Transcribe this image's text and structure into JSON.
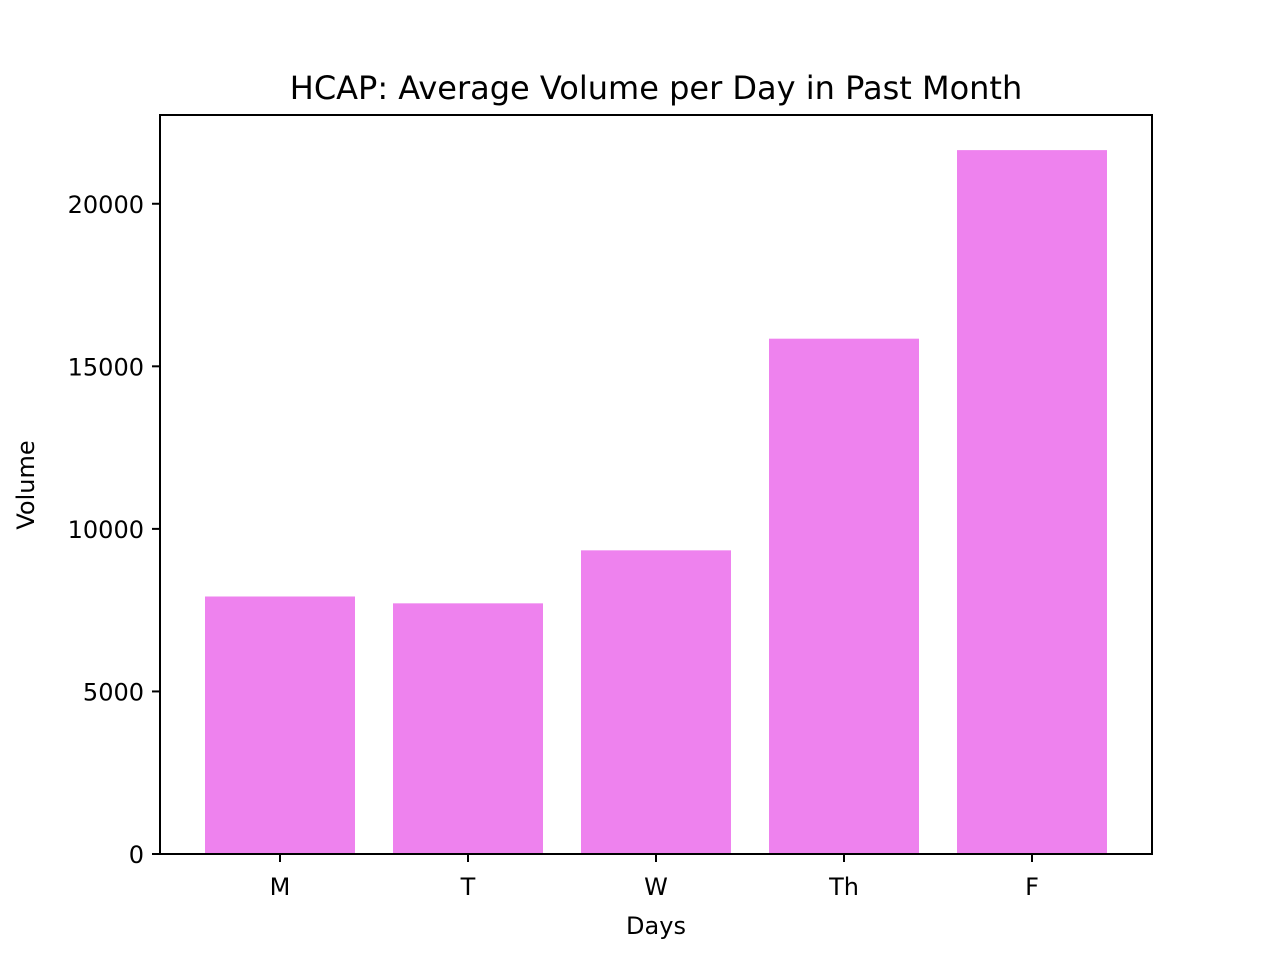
{
  "chart_data": {
    "type": "bar",
    "title": "HCAP: Average Volume per Day in Past Month",
    "xlabel": "Days",
    "ylabel": "Volume",
    "categories": [
      "M",
      "T",
      "W",
      "Th",
      "F"
    ],
    "values": [
      7920,
      7710,
      9340,
      15850,
      21650
    ],
    "ylim": [
      0,
      22730
    ],
    "yticks": [
      0,
      5000,
      10000,
      15000,
      20000
    ],
    "bar_color": "#ee82ee",
    "grid": false,
    "legend": "none"
  }
}
